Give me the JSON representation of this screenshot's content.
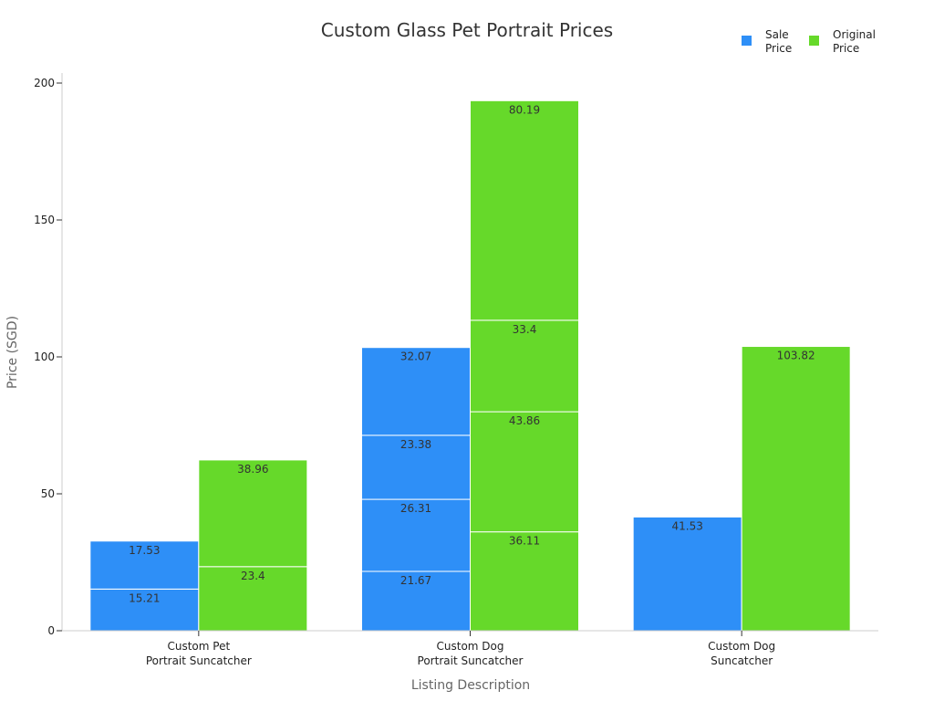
{
  "chart_data": {
    "type": "bar",
    "stacked": true,
    "title": "Custom Glass Pet Portrait Prices",
    "xlabel": "Listing Description",
    "ylabel": "Price (SGD)",
    "ylim": [
      0,
      200
    ],
    "yticks": [
      0,
      50,
      100,
      150,
      200
    ],
    "grid": false,
    "legend_position": "top-right",
    "categories": [
      [
        "Custom Pet",
        "Portrait Suncatcher"
      ],
      [
        "Custom Dog",
        "Portrait Suncatcher"
      ],
      [
        "Custom Dog",
        "Suncatcher"
      ]
    ],
    "series": [
      {
        "name": [
          "Sale",
          "Price"
        ],
        "color": "#2e8ff7",
        "stacks": [
          [
            15.21,
            17.53
          ],
          [
            21.67,
            26.31,
            23.38,
            32.07
          ],
          [
            41.53
          ]
        ]
      },
      {
        "name": [
          "Original",
          "Price"
        ],
        "color": "#66d92a",
        "stacks": [
          [
            23.4,
            38.96
          ],
          [
            36.11,
            43.86,
            33.4,
            80.19
          ],
          [
            103.82
          ]
        ]
      }
    ]
  }
}
